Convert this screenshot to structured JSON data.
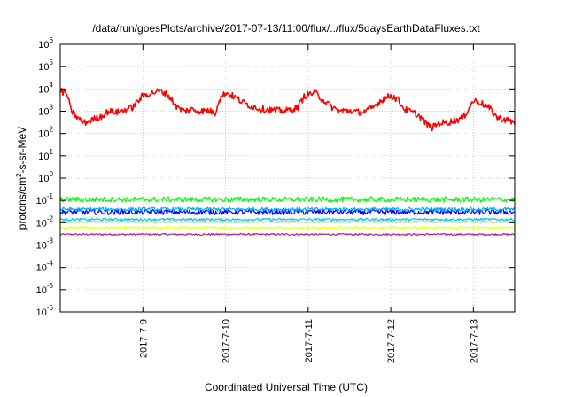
{
  "chart_data": {
    "type": "line",
    "title": "/data/run/goesPlots/archive/2017-07-13/11:00/flux/../flux/5daysEarthDataFluxes.txt",
    "xlabel": "Coordinated Universal Time (UTC)",
    "ylabel": {
      "prefix": "protons/cm",
      "sup": "2",
      "suffix": "-s-sr-MeV"
    },
    "yscale": "log",
    "ylim": [
      1e-06,
      1000000.0
    ],
    "xlim": [
      "2017-07-08 00:00",
      "2017-07-13 12:00"
    ],
    "grid": true,
    "legend": "none",
    "y_ticks": [
      {
        "value": 1e-06,
        "base": "10",
        "exp": "-6"
      },
      {
        "value": 1e-05,
        "base": "10",
        "exp": "-5"
      },
      {
        "value": 0.0001,
        "base": "10",
        "exp": "-4"
      },
      {
        "value": 0.001,
        "base": "10",
        "exp": "-3"
      },
      {
        "value": 0.01,
        "base": "10",
        "exp": "-2"
      },
      {
        "value": 0.1,
        "base": "10",
        "exp": "-1"
      },
      {
        "value": 1,
        "base": "10",
        "exp": "0"
      },
      {
        "value": 10,
        "base": "10",
        "exp": "1"
      },
      {
        "value": 100,
        "base": "10",
        "exp": "2"
      },
      {
        "value": 1000.0,
        "base": "10",
        "exp": "3"
      },
      {
        "value": 10000.0,
        "base": "10",
        "exp": "4"
      },
      {
        "value": 100000.0,
        "base": "10",
        "exp": "5"
      },
      {
        "value": 1000000.0,
        "base": "10",
        "exp": "6"
      }
    ],
    "x_ticks": [
      {
        "value": "2017-07-09",
        "label": "2017-7-9"
      },
      {
        "value": "2017-07-10",
        "label": "2017-7-10"
      },
      {
        "value": "2017-07-11",
        "label": "2017-7-11"
      },
      {
        "value": "2017-07-12",
        "label": "2017-7-12"
      },
      {
        "value": "2017-07-13",
        "label": "2017-7-13"
      }
    ],
    "series": [
      {
        "color": "#ff0000",
        "noise": 0.15,
        "x": [
          "2017-07-08 00:00",
          "2017-07-08 02:00",
          "2017-07-08 03:00",
          "2017-07-08 05:00",
          "2017-07-08 07:00",
          "2017-07-08 09:00",
          "2017-07-08 12:00",
          "2017-07-08 14:00",
          "2017-07-08 17:00",
          "2017-07-08 19:00",
          "2017-07-08 21:00",
          "2017-07-09 00:00",
          "2017-07-09 03:00",
          "2017-07-09 05:00",
          "2017-07-09 07:00",
          "2017-07-09 10:00",
          "2017-07-09 12:00",
          "2017-07-09 14:00",
          "2017-07-09 17:00",
          "2017-07-09 19:00",
          "2017-07-09 21:00",
          "2017-07-09 22:00",
          "2017-07-10 00:00",
          "2017-07-10 03:00",
          "2017-07-10 05:00",
          "2017-07-10 07:00",
          "2017-07-10 10:00",
          "2017-07-10 14:00",
          "2017-07-10 17:00",
          "2017-07-10 19:00",
          "2017-07-10 21:00",
          "2017-07-10 23:00",
          "2017-07-11 02:00",
          "2017-07-11 04:00",
          "2017-07-11 07:00",
          "2017-07-11 09:00",
          "2017-07-11 12:00",
          "2017-07-11 14:00",
          "2017-07-11 17:00",
          "2017-07-11 19:00",
          "2017-07-11 21:00",
          "2017-07-12 00:00",
          "2017-07-12 02:00",
          "2017-07-12 04:00",
          "2017-07-12 07:00",
          "2017-07-12 09:00",
          "2017-07-12 10:00",
          "2017-07-12 12:00",
          "2017-07-12 14:00",
          "2017-07-12 16:00",
          "2017-07-12 19:00",
          "2017-07-12 21:00",
          "2017-07-13 00:00",
          "2017-07-13 02:00",
          "2017-07-13 05:00",
          "2017-07-13 07:00",
          "2017-07-13 10:00",
          "2017-07-13 12:00"
        ],
        "y": [
          8000,
          6000,
          1200,
          500,
          300,
          400,
          600,
          1000,
          900,
          1200,
          1500,
          5000,
          7000,
          8000,
          6000,
          1500,
          1000,
          1200,
          1000,
          1100,
          800,
          3000,
          7000,
          4000,
          2500,
          1800,
          1300,
          1100,
          1000,
          1200,
          1500,
          5000,
          7000,
          3500,
          1500,
          1000,
          1100,
          900,
          1000,
          1500,
          3000,
          5000,
          3500,
          1200,
          800,
          500,
          300,
          180,
          300,
          300,
          400,
          500,
          3000,
          2500,
          1200,
          500,
          400,
          300
        ]
      },
      {
        "color": "#00ff00",
        "noise": 0.12,
        "x": [
          "2017-07-08 00:00",
          "2017-07-13 12:00"
        ],
        "y": [
          0.11,
          0.11
        ]
      },
      {
        "color": "#00aaff",
        "noise": 0.08,
        "x": [
          "2017-07-08 00:00",
          "2017-07-13 12:00"
        ],
        "y": [
          0.04,
          0.04
        ]
      },
      {
        "color": "#0000ff",
        "noise": 0.12,
        "x": [
          "2017-07-08 00:00",
          "2017-07-13 12:00"
        ],
        "y": [
          0.03,
          0.03
        ]
      },
      {
        "color": "#00cccc",
        "noise": 0.05,
        "x": [
          "2017-07-08 00:00",
          "2017-07-13 12:00"
        ],
        "y": [
          0.014,
          0.014
        ]
      },
      {
        "color": "#a0d890",
        "noise": 0.04,
        "x": [
          "2017-07-08 00:00",
          "2017-07-13 12:00"
        ],
        "y": [
          0.011,
          0.011
        ]
      },
      {
        "color": "#ffff00",
        "noise": 0.05,
        "x": [
          "2017-07-08 00:00",
          "2017-07-13 12:00"
        ],
        "y": [
          0.006,
          0.006
        ]
      },
      {
        "color": "#aa2288",
        "noise": 0.04,
        "x": [
          "2017-07-08 00:00",
          "2017-07-13 12:00"
        ],
        "y": [
          0.003,
          0.003
        ]
      }
    ]
  }
}
